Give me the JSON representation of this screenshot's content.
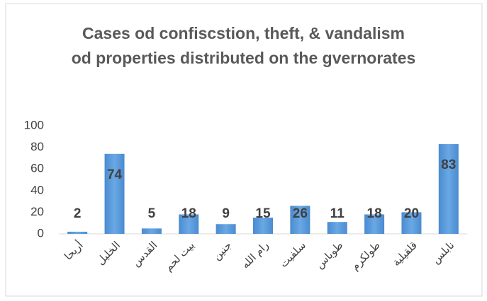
{
  "chart_data": {
    "type": "bar",
    "title": "Cases od confiscstion, theft, & vandalism od properties distributed on the gvernorates",
    "categories": [
      "أريحا",
      "الخليل",
      "القدس",
      "بيت لحم",
      "جنين",
      "رام الله",
      "سلفيت",
      "طوباس",
      "طولكرم",
      "قلقيلية",
      "نابلس"
    ],
    "values": [
      2,
      74,
      5,
      18,
      9,
      15,
      26,
      11,
      18,
      20,
      83
    ],
    "color": "#5b9bd5",
    "ylim": [
      0,
      100
    ],
    "yticks": [
      0,
      20,
      40,
      60,
      80,
      100
    ],
    "grid": false
  }
}
